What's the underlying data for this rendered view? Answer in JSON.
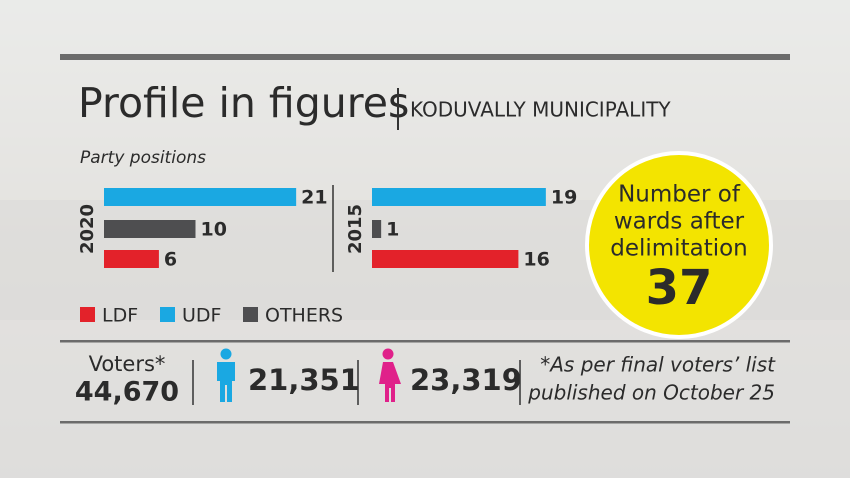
{
  "header": {
    "title": "Profile in figures",
    "subtitle": "KODUVALLY MUNICIPALITY"
  },
  "chart_data": {
    "type": "bar",
    "orientation": "horizontal",
    "subtitle": "Party positions",
    "categories": [
      "2020",
      "2015"
    ],
    "series": [
      {
        "name": "LDF",
        "color": "#e3222a",
        "values": [
          6,
          16
        ]
      },
      {
        "name": "UDF",
        "color": "#1aa8e2",
        "values": [
          21,
          19
        ]
      },
      {
        "name": "OTHERS",
        "color": "#4e4e50",
        "values": [
          10,
          1
        ]
      }
    ]
  },
  "wards": {
    "label_lines": [
      "Number of",
      "wards after",
      "delimitation"
    ],
    "value": "37"
  },
  "voters": {
    "label": "Voters*",
    "total": "44,670",
    "male": "21,351",
    "female": "23,319",
    "note_lines": [
      "*As per final voters’ list",
      "published on October 25"
    ]
  }
}
